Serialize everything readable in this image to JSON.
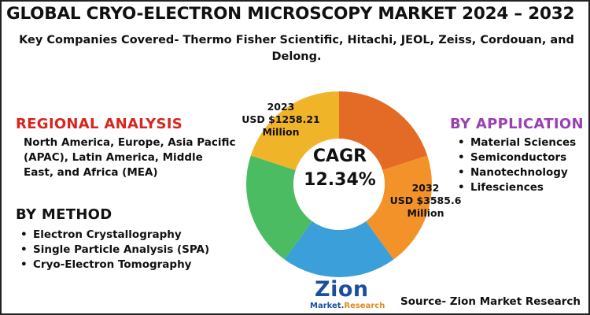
{
  "title": "GLOBAL CRYO-ELECTRON MICROSCOPY MARKET 2024 – 2032",
  "subtitle": "Key Companies Covered- Thermo Fisher Scientific, Hitachi, JEOL, Zeiss, Cordouan, and Delong.",
  "regional": {
    "title": "REGIONAL ANALYSIS",
    "text": "North America, Europe, Asia Pacific (APAC), Latin America, Middle East, and Africa (MEA)"
  },
  "method": {
    "title": "BY METHOD",
    "items": [
      "Electron Crystallography",
      "Single Particle Analysis (SPA)",
      "Cryo-Electron Tomography"
    ]
  },
  "application": {
    "title": "BY APPLICATION",
    "items": [
      "Material Sciences",
      "Semiconductors",
      "Nanotechnology",
      "Lifesciences"
    ]
  },
  "cagr": {
    "label": "CAGR",
    "value": "12.34%"
  },
  "annotations": {
    "y2023": {
      "year": "2023",
      "value": "USD $1258.21",
      "unit": "Million"
    },
    "y2032": {
      "year": "2032",
      "value": "USD $3585.6",
      "unit": "Million"
    }
  },
  "donut": {
    "segments": [
      {
        "color": "#e36b26",
        "share": 0.2
      },
      {
        "color": "#f39229",
        "share": 0.2
      },
      {
        "color": "#3b9fd9",
        "share": 0.2
      },
      {
        "color": "#4cbc62",
        "share": 0.2
      },
      {
        "color": "#f0b429",
        "share": 0.2
      }
    ]
  },
  "logo": {
    "main": "Zion",
    "sub_a": "Market.",
    "sub_b": "Research"
  },
  "source": "Source- Zion Market Research",
  "colors": {
    "regional": "#d9251d",
    "application": "#9b3fb5",
    "logo": "#1d4e9e",
    "logo_accent": "#e08a1e"
  }
}
